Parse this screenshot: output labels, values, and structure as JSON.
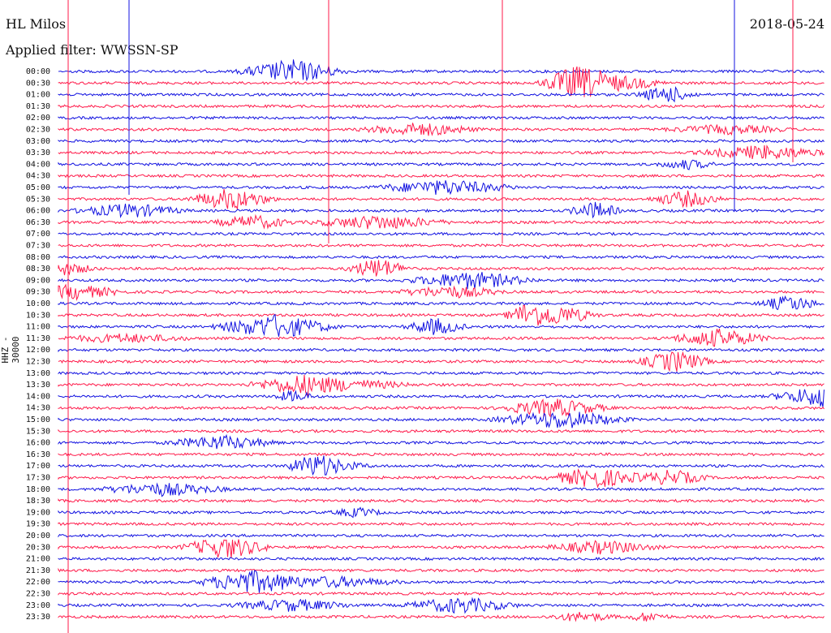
{
  "header": {
    "station": "HL Milos",
    "date": "2018-05-24",
    "filter": "Applied filter: WWSSN-SP",
    "channel": "HHZ - 30000"
  },
  "chart_data": {
    "type": "line",
    "title": "HL Milos",
    "subtitle": "Applied filter: WWSSN-SP",
    "ylabel": "HHZ - 30000",
    "xlabel": "",
    "date": "2018-05-24",
    "row_labels": [
      "00:00",
      "00:30",
      "01:00",
      "01:30",
      "02:00",
      "02:30",
      "03:00",
      "03:30",
      "04:00",
      "04:30",
      "05:00",
      "05:30",
      "06:00",
      "06:30",
      "07:00",
      "07:30",
      "08:00",
      "08:30",
      "09:00",
      "09:30",
      "10:00",
      "10:30",
      "11:00",
      "11:30",
      "12:00",
      "12:30",
      "13:00",
      "13:30",
      "14:00",
      "14:30",
      "15:00",
      "15:30",
      "16:00",
      "16:30",
      "17:00",
      "17:30",
      "18:00",
      "18:30",
      "19:00",
      "19:30",
      "20:00",
      "20:30",
      "21:00",
      "21:30",
      "22:00",
      "22:30",
      "23:00",
      "23:30"
    ],
    "series_colors": [
      "#1010e0",
      "#ff1a4a"
    ],
    "grid": false,
    "legend": "none"
  }
}
